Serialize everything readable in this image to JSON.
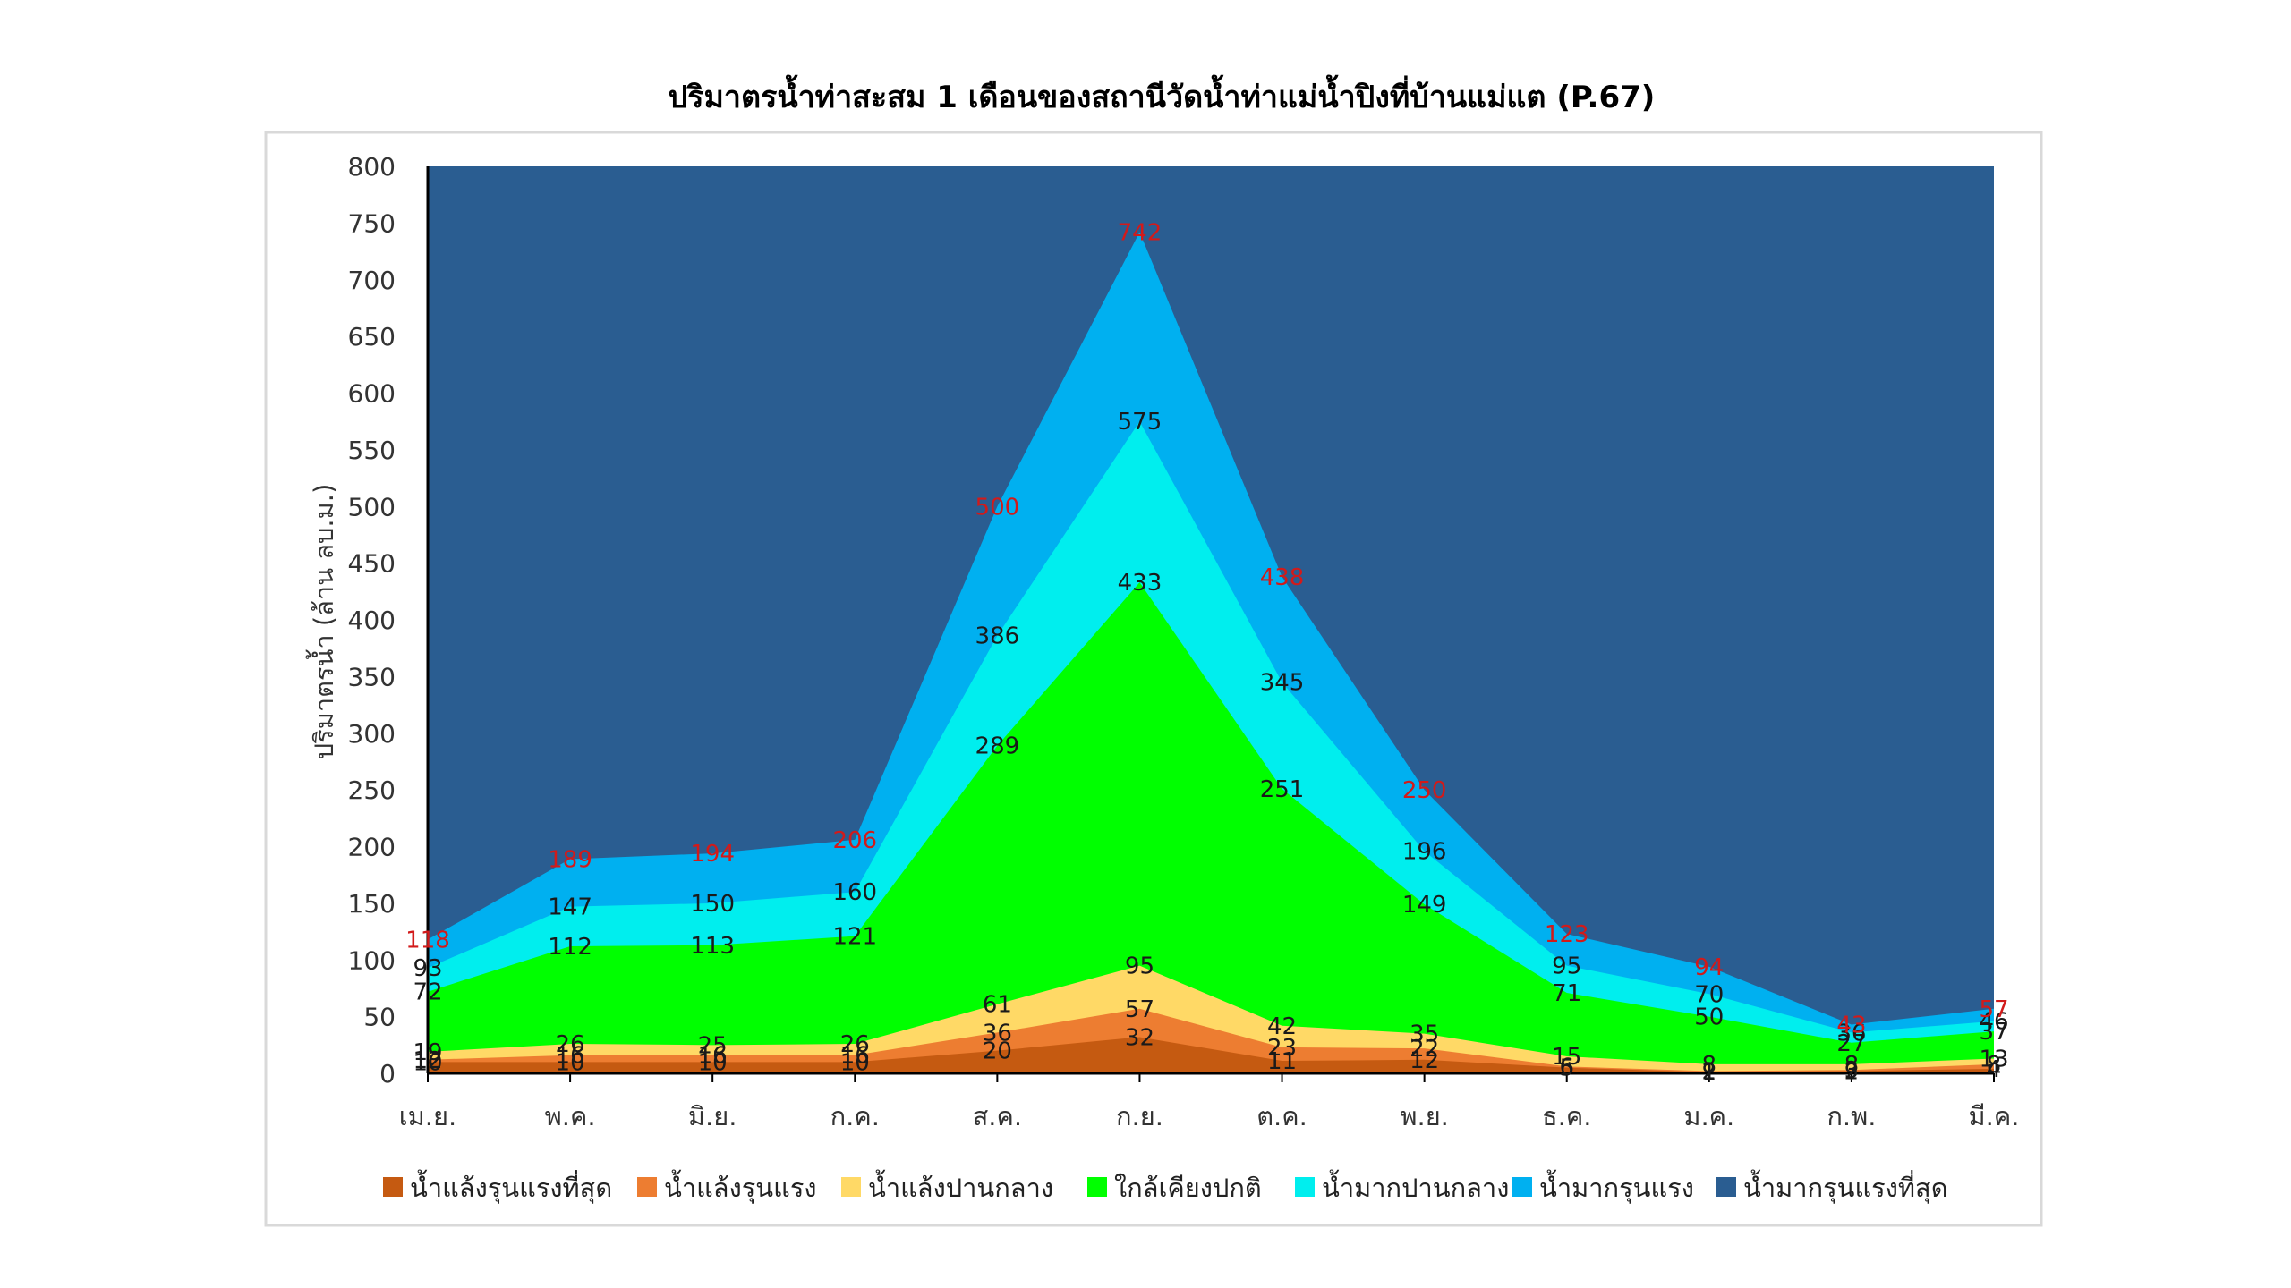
{
  "chart_data": {
    "type": "area",
    "title": "ปริมาตรน้ำท่าสะสม 1 เดือนของสถานีวัดน้ำท่าแม่น้ำปิงที่บ้านแม่แต (P.67)",
    "xlabel": "",
    "ylabel": "ปริมาตรน้ำ (ล้าน ลบ.ม.)",
    "ylim": [
      0,
      800
    ],
    "yticks": [
      0,
      50,
      100,
      150,
      200,
      250,
      300,
      350,
      400,
      450,
      500,
      550,
      600,
      650,
      700,
      750,
      800
    ],
    "categories": [
      "เม.ย.",
      "พ.ค.",
      "มิ.ย.",
      "ก.ค.",
      "ส.ค.",
      "ก.ย.",
      "ต.ค.",
      "พ.ย.",
      "ธ.ค.",
      "ม.ค.",
      "ก.พ.",
      "มี.ค."
    ],
    "legend_position": "bottom",
    "series": [
      {
        "name": "น้ำแล้งรุนแรงที่สุด",
        "color": "#c55a11",
        "values": [
          10,
          10,
          10,
          10,
          20,
          32,
          11,
          12,
          5,
          1,
          2,
          4
        ],
        "labels": [
          "10",
          "10",
          "10",
          "10",
          "20",
          "32",
          "11",
          "12",
          "5",
          "1",
          "2",
          "4"
        ]
      },
      {
        "name": "น้ำแล้งรุนแรง",
        "color": "#ed7d31",
        "values": [
          12,
          16,
          16,
          16,
          36,
          57,
          23,
          22,
          6,
          2,
          3,
          8
        ],
        "labels": [
          "12",
          "16",
          "16",
          "16",
          "36",
          "57",
          "23",
          "22",
          "6",
          "2",
          "3",
          "8"
        ]
      },
      {
        "name": "น้ำแล้งปานกลาง",
        "color": "#ffd966",
        "values": [
          19,
          26,
          25,
          26,
          61,
          95,
          42,
          35,
          15,
          8,
          8,
          13
        ],
        "labels": [
          "19",
          "26",
          "25",
          "26",
          "61",
          "95",
          "42",
          "35",
          "15",
          "8",
          "8",
          "13"
        ]
      },
      {
        "name": "ใกล้เคียงปกติ",
        "color": "#00ff00",
        "values": [
          72,
          112,
          113,
          121,
          289,
          433,
          251,
          149,
          71,
          50,
          27,
          37
        ],
        "labels": [
          "72",
          "112",
          "113",
          "121",
          "289",
          "433",
          "251",
          "149",
          "71",
          "50",
          "27",
          "37"
        ]
      },
      {
        "name": "น้ำมากปานกลาง",
        "color": "#00eeee",
        "values": [
          93,
          147,
          150,
          160,
          386,
          575,
          345,
          196,
          95,
          70,
          36,
          46
        ],
        "labels": [
          "93",
          "147",
          "150",
          "160",
          "386",
          "575",
          "345",
          "196",
          "95",
          "70",
          "36",
          "46"
        ]
      },
      {
        "name": "น้ำมากรุนแรง",
        "color": "#00b0f0",
        "values": [
          118,
          189,
          194,
          206,
          500,
          742,
          438,
          250,
          123,
          94,
          43,
          57
        ],
        "labels": [
          "118",
          "189",
          "194",
          "206",
          "500",
          "742",
          "438",
          "250",
          "123",
          "94",
          "43",
          "57"
        ]
      },
      {
        "name": "น้ำมากรุนแรงที่สุด",
        "color": "#2a5d91",
        "values": [
          800,
          800,
          800,
          800,
          800,
          800,
          800,
          800,
          800,
          800,
          800,
          800
        ],
        "labels": []
      }
    ]
  }
}
